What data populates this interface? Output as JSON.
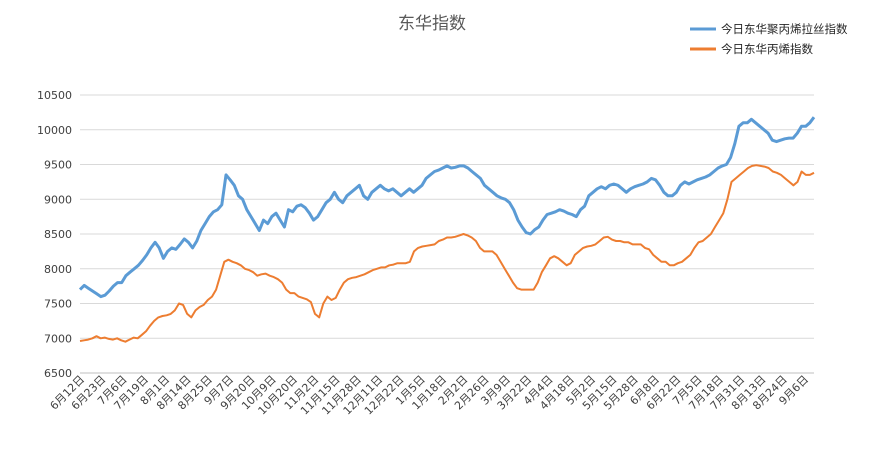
{
  "chart_data": {
    "type": "line",
    "title": "东华指数",
    "xlabel": "",
    "ylabel": "",
    "ylim": [
      6500,
      10500
    ],
    "yticks": [
      6500,
      7000,
      7500,
      8000,
      8500,
      9000,
      9500,
      10000,
      10500
    ],
    "x_tick_labels": [
      "6月12日",
      "6月23日",
      "7月6日",
      "7月19日",
      "8月1日",
      "8月14日",
      "8月25日",
      "9月7日",
      "9月20日",
      "10月9日",
      "10月20日",
      "11月2日",
      "11月15日",
      "11月28日",
      "12月11日",
      "12月22日",
      "1月5日",
      "1月18日",
      "2月2日",
      "2月26日",
      "3月9日",
      "3月22日",
      "4月4日",
      "4月18日",
      "5月2日",
      "5月15日",
      "5月28日",
      "6月8日",
      "6月22日",
      "7月5日",
      "7月18日",
      "7月31日",
      "8月13日",
      "8月24日",
      "9月6日"
    ],
    "grid": "horizontal",
    "legend_position": "top-right",
    "series": [
      {
        "name": "今日东华聚丙烯拉丝指数",
        "color": "#5B9BD5",
        "values": [
          7700,
          7760,
          7720,
          7680,
          7640,
          7600,
          7620,
          7680,
          7750,
          7800,
          7800,
          7900,
          7950,
          8000,
          8050,
          8120,
          8200,
          8300,
          8380,
          8300,
          8150,
          8250,
          8300,
          8280,
          8350,
          8430,
          8380,
          8300,
          8400,
          8550,
          8650,
          8750,
          8820,
          8850,
          8920,
          9350,
          9280,
          9200,
          9050,
          9000,
          8850,
          8750,
          8650,
          8550,
          8700,
          8650,
          8750,
          8800,
          8700,
          8600,
          8850,
          8820,
          8900,
          8920,
          8880,
          8800,
          8700,
          8750,
          8850,
          8950,
          9000,
          9100,
          9000,
          8950,
          9050,
          9100,
          9150,
          9200,
          9050,
          9000,
          9100,
          9150,
          9200,
          9150,
          9120,
          9150,
          9100,
          9050,
          9100,
          9150,
          9100,
          9150,
          9200,
          9300,
          9350,
          9400,
          9420,
          9450,
          9480,
          9450,
          9460,
          9480,
          9480,
          9450,
          9400,
          9350,
          9300,
          9200,
          9150,
          9100,
          9050,
          9020,
          9000,
          8950,
          8850,
          8700,
          8600,
          8520,
          8500,
          8560,
          8600,
          8700,
          8780,
          8800,
          8820,
          8850,
          8830,
          8800,
          8780,
          8750,
          8850,
          8900,
          9050,
          9100,
          9150,
          9180,
          9150,
          9200,
          9220,
          9200,
          9150,
          9100,
          9150,
          9180,
          9200,
          9220,
          9250,
          9300,
          9280,
          9200,
          9100,
          9050,
          9050,
          9100,
          9200,
          9250,
          9220,
          9250,
          9280,
          9300,
          9320,
          9350,
          9400,
          9450,
          9480,
          9500,
          9600,
          9800,
          10050,
          10100,
          10100,
          10150,
          10100,
          10050,
          10000,
          9950,
          9850,
          9830,
          9850,
          9870,
          9880,
          9880,
          9950,
          10050,
          10050,
          10100,
          10180
        ]
      },
      {
        "name": "今日东华丙烯指数",
        "color": "#ED7D31",
        "values": [
          6960,
          6970,
          6980,
          7000,
          7030,
          7000,
          7010,
          6990,
          6980,
          7000,
          6970,
          6950,
          6980,
          7010,
          7000,
          7050,
          7100,
          7180,
          7250,
          7300,
          7320,
          7330,
          7350,
          7400,
          7500,
          7480,
          7350,
          7300,
          7400,
          7450,
          7480,
          7550,
          7600,
          7700,
          7900,
          8100,
          8130,
          8100,
          8080,
          8050,
          8000,
          7980,
          7950,
          7900,
          7920,
          7930,
          7900,
          7880,
          7850,
          7800,
          7700,
          7650,
          7650,
          7600,
          7580,
          7560,
          7520,
          7350,
          7300,
          7500,
          7600,
          7550,
          7580,
          7700,
          7800,
          7850,
          7870,
          7880,
          7900,
          7920,
          7950,
          7980,
          8000,
          8020,
          8020,
          8050,
          8060,
          8080,
          8080,
          8080,
          8100,
          8250,
          8300,
          8320,
          8330,
          8340,
          8350,
          8400,
          8420,
          8450,
          8450,
          8460,
          8480,
          8500,
          8480,
          8450,
          8400,
          8300,
          8250,
          8250,
          8250,
          8200,
          8100,
          8000,
          7900,
          7800,
          7720,
          7700,
          7700,
          7700,
          7700,
          7800,
          7950,
          8050,
          8150,
          8180,
          8150,
          8100,
          8050,
          8080,
          8200,
          8250,
          8300,
          8320,
          8330,
          8350,
          8400,
          8450,
          8460,
          8420,
          8400,
          8400,
          8380,
          8380,
          8350,
          8350,
          8350,
          8300,
          8280,
          8200,
          8150,
          8100,
          8100,
          8050,
          8050,
          8080,
          8100,
          8150,
          8200,
          8300,
          8380,
          8400,
          8450,
          8500,
          8600,
          8700,
          8800,
          9000,
          9250,
          9300,
          9350,
          9400,
          9450,
          9480,
          9490,
          9480,
          9470,
          9450,
          9400,
          9380,
          9350,
          9300,
          9250,
          9200,
          9250,
          9400,
          9350,
          9350,
          9380
        ]
      }
    ]
  }
}
